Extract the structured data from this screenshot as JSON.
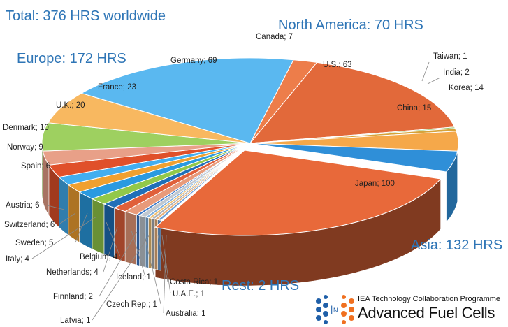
{
  "chart_data": {
    "type": "pie",
    "title": "Total: 376 HRS worldwide",
    "regions": [
      {
        "name": "North America: 70 HRS"
      },
      {
        "name": "Europe: 172 HRS"
      },
      {
        "name": "Asia: 132 HRS"
      },
      {
        "name": "Rest: 2 HRS"
      }
    ],
    "slices": [
      {
        "label": "Canada; 7",
        "country": "Canada",
        "value": 7,
        "color": "#ed7d4a"
      },
      {
        "label": "U.S.; 63",
        "country": "U.S.",
        "value": 63,
        "color": "#e2693a"
      },
      {
        "label": "Taiwan; 1",
        "country": "Taiwan",
        "value": 1,
        "color": "#9ac26a"
      },
      {
        "label": "India; 2",
        "country": "India",
        "value": 2,
        "color": "#d7a33a"
      },
      {
        "label": "Korea; 14",
        "country": "Korea",
        "value": 14,
        "color": "#f5a84a"
      },
      {
        "label": "China; 15",
        "country": "China",
        "value": 15,
        "color": "#2f8fd8"
      },
      {
        "label": "Japan; 100",
        "country": "Japan",
        "value": 100,
        "color": "#e8693a"
      },
      {
        "label": "Australia; 1",
        "country": "Australia",
        "value": 1,
        "color": "#6aa0d8"
      },
      {
        "label": "U.A.E.; 1",
        "country": "U.A.E.",
        "value": 1,
        "color": "#e8b07a"
      },
      {
        "label": "Costa Rica; 1",
        "country": "Costa Rica",
        "value": 1,
        "color": "#aab0b8"
      },
      {
        "label": "Latvia; 1",
        "country": "Latvia",
        "value": 1,
        "color": "#f0c070"
      },
      {
        "label": "Czech Rep.; 1",
        "country": "Czech Rep.",
        "value": 1,
        "color": "#7fb0e0"
      },
      {
        "label": "Finnland; 2",
        "country": "Finnland",
        "value": 2,
        "color": "#c0c8d0"
      },
      {
        "label": "Iceland; 1",
        "country": "Iceland",
        "value": 1,
        "color": "#3a78c8"
      },
      {
        "label": "Netherlands; 4",
        "country": "Netherlands",
        "value": 4,
        "color": "#e89a7a"
      },
      {
        "label": "Belgium; 4",
        "country": "Belgium",
        "value": 4,
        "color": "#e0603a"
      },
      {
        "label": "Italy; 4",
        "country": "Italy",
        "value": 4,
        "color": "#1f6fb8"
      },
      {
        "label": "Sweden; 5",
        "country": "Sweden",
        "value": 5,
        "color": "#92c84a"
      },
      {
        "label": "Switzerland; 6",
        "country": "Switzerland",
        "value": 6,
        "color": "#2a9ae0"
      },
      {
        "label": "Austria; 6",
        "country": "Austria",
        "value": 6,
        "color": "#f0a030"
      },
      {
        "label": "Spain; 6",
        "country": "Spain",
        "value": 6,
        "color": "#42aef0"
      },
      {
        "label": "Norway; 9",
        "country": "Norway",
        "value": 9,
        "color": "#e0502a"
      },
      {
        "label": "Denmark; 10",
        "country": "Denmark",
        "value": 10,
        "color": "#e8a088"
      },
      {
        "label": "U.K.; 20",
        "country": "U.K.",
        "value": 20,
        "color": "#9ed060"
      },
      {
        "label": "France; 23",
        "country": "France",
        "value": 23,
        "color": "#f8b860"
      },
      {
        "label": "Germany; 69",
        "country": "Germany",
        "value": 69,
        "color": "#5ab8f0"
      }
    ]
  },
  "logo": {
    "subtitle": "IEA Technology Collaboration Programme",
    "name": "Advanced Fuel Cells"
  }
}
